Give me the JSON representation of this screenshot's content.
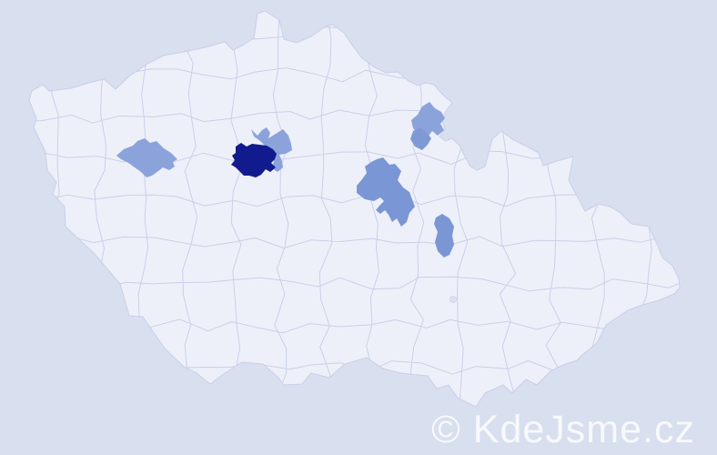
{
  "watermark": {
    "text": "© KdeJsme.cz"
  },
  "colors": {
    "background": "#d8dfee",
    "land": "#eef0f9",
    "border": "#c9cfe9",
    "enclave": "#dbe2f3",
    "watermark": "rgba(255,255,255,0.8)",
    "scale": {
      "light": "#8ba3da",
      "medium": "#7b96d4",
      "dark": "#111b8e"
    }
  },
  "regions": [
    {
      "name": "district-west-of-capital",
      "shade": "light",
      "color": "#8ba3da"
    },
    {
      "name": "district-capital-east-neighbor",
      "shade": "light",
      "color": "#8ba3da"
    },
    {
      "name": "district-capital",
      "shade": "dark",
      "color": "#111b8e"
    },
    {
      "name": "district-northeast",
      "shade": "light",
      "color": "#8ba3da"
    },
    {
      "name": "district-northeast-south-neighbor",
      "shade": "medium",
      "color": "#7e99d6"
    },
    {
      "name": "district-central-east",
      "shade": "medium",
      "color": "#7b96d4"
    },
    {
      "name": "district-central-east-small",
      "shade": "medium",
      "color": "#7b96d4"
    }
  ]
}
